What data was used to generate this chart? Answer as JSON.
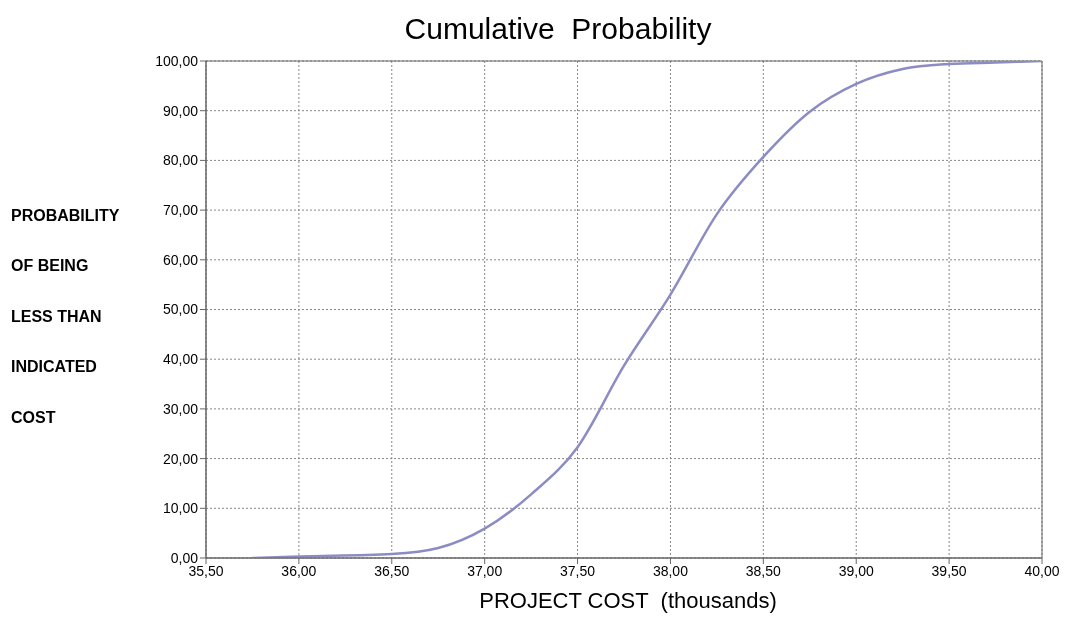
{
  "chart_data": {
    "type": "line",
    "title": "Cumulative  Probability",
    "xlabel": "PROJECT COST  (thousands)",
    "ylabel": "PROBABILITY\nOF BEING\nLESS THAN\nINDICATED\nCOST",
    "x": [
      35.75,
      36.0,
      36.5,
      36.75,
      37.0,
      37.25,
      37.5,
      37.75,
      38.0,
      38.25,
      38.5,
      38.75,
      39.0,
      39.25,
      39.5,
      39.75,
      40.0
    ],
    "series": [
      {
        "color": "#8c8cc4",
        "values": [
          0,
          0.3,
          0.8,
          2,
          5.9,
          12.8,
          22.3,
          38.7,
          53,
          69.2,
          80.7,
          89.8,
          95.4,
          98.4,
          99.4,
          99.7,
          100
        ]
      }
    ],
    "xlim": [
      35.5,
      40
    ],
    "xticks": [
      {
        "value": 35.5,
        "label": "35,50"
      },
      {
        "value": 36,
        "label": "36,00"
      },
      {
        "value": 36.5,
        "label": "36,50"
      },
      {
        "value": 37,
        "label": "37,00"
      },
      {
        "value": 37.5,
        "label": "37,50"
      },
      {
        "value": 38,
        "label": "38,00"
      },
      {
        "value": 38.5,
        "label": "38,50"
      },
      {
        "value": 39,
        "label": "39,00"
      },
      {
        "value": 39.5,
        "label": "39,50"
      },
      {
        "value": 40,
        "label": "40,00"
      }
    ],
    "ylim": [
      0,
      100
    ],
    "yticks": [
      {
        "value": 0,
        "label": "0,00"
      },
      {
        "value": 10,
        "label": "10,00"
      },
      {
        "value": 20,
        "label": "20,00"
      },
      {
        "value": 30,
        "label": "30,00"
      },
      {
        "value": 40,
        "label": "40,00"
      },
      {
        "value": 50,
        "label": "50,00"
      },
      {
        "value": 60,
        "label": "60,00"
      },
      {
        "value": 70,
        "label": "70,00"
      },
      {
        "value": 80,
        "label": "80,00"
      },
      {
        "value": 90,
        "label": "90,00"
      },
      {
        "value": 100,
        "label": "100,00"
      }
    ],
    "grid": true,
    "marker": "none",
    "line_style": "solid"
  }
}
